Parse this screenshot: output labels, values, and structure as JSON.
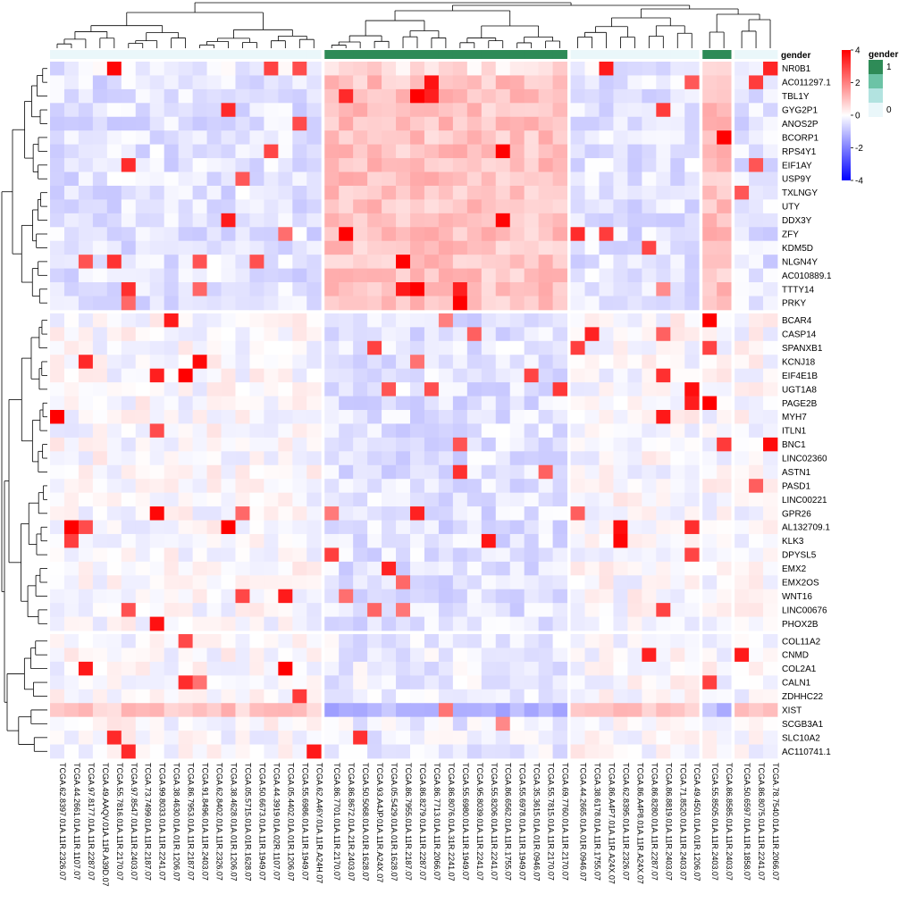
{
  "chart_data": {
    "type": "heatmap",
    "annotation_title": "gender",
    "legend_title": "gender",
    "color_scale": {
      "min": -4,
      "max": 4,
      "ticks": [
        "4",
        "2",
        "0",
        "-2",
        "-4"
      ],
      "low_color": "#0000ff",
      "mid_color": "#ffffff",
      "high_color": "#ff0000"
    },
    "annotation_legend": {
      "entries": [
        {
          "label": "1",
          "color": "#2e8b57"
        },
        {
          "label": "",
          "color": "#6cc3a6"
        },
        {
          "label": "",
          "color": "#b2e3e0"
        },
        {
          "label": "0",
          "color": "#eaf7fa"
        }
      ]
    },
    "gender_colors": {
      "1": "#2e8b57",
      "0": "#eaf7fa"
    },
    "gender": [
      0,
      0,
      0,
      0,
      0,
      0,
      0,
      0,
      0,
      0,
      0,
      0,
      0,
      0,
      0,
      0,
      0,
      0,
      0,
      1,
      1,
      1,
      1,
      1,
      1,
      1,
      1,
      1,
      1,
      1,
      1,
      1,
      1,
      1,
      1,
      1,
      0,
      0,
      0,
      0,
      0,
      0,
      0,
      0,
      0,
      1,
      1,
      0,
      0,
      0
    ],
    "rows": [
      "NR0B1",
      "AC011297.1",
      "TBL1Y",
      "GYG2P1",
      "ANOS2P",
      "BCORP1",
      "RPS4Y1",
      "EIF1AY",
      "USP9Y",
      "TXLNGY",
      "UTY",
      "DDX3Y",
      "ZFY",
      "KDM5D",
      "NLGN4Y",
      "AC010889.1",
      "TTTY14",
      "PRKY",
      "BCAR4",
      "CASP14",
      "SPANXB1",
      "KCNJ18",
      "EIF4E1B",
      "UGT1A8",
      "PAGE2B",
      "MYH7",
      "ITLN1",
      "BNC1",
      "LINC02360",
      "ASTN1",
      "PASD1",
      "LINC00221",
      "GPR26",
      "AL132709.1",
      "KLK3",
      "DPYSL5",
      "EMX2",
      "EMX2OS",
      "WNT16",
      "LINC00676",
      "PHOX2B",
      "COL11A2",
      "CNMD",
      "COL2A1",
      "CALN1",
      "ZDHHC22",
      "XIST",
      "SCGB3A1",
      "SLC10A2",
      "AC110741.1"
    ],
    "columns": [
      "TCGA.62.8397.01A.11R.2326.07",
      "TCGA.44.2661.01A.11R.1107.07",
      "TCGA.97.8177.01A.11R.2287.07",
      "TCGA.49.AAQV.01A.11R.A39D.07",
      "TCGA.55.7816.01A.11R.2170.07",
      "TCGA.97.8547.01A.11R.2403.07",
      "TCGA.73.7499.01A.11R.2187.07",
      "TCGA.99.8033.01A.11R.2241.07",
      "TCGA.38.4630.01A.01R.1206.07",
      "TCGA.86.7953.01A.11R.2187.07",
      "TCGA.91.8496.01A.11R.2403.07",
      "TCGA.62.8402.01A.11R.2326.07",
      "TCGA.38.4628.01A.01R.1206.07",
      "TCGA.05.5715.01A.01R.1628.07",
      "TCGA.50.6673.01A.11R.1949.07",
      "TCGA.44.3919.01A.02R.1107.07",
      "TCGA.05.4402.01A.01R.1206.07",
      "TCGA.55.6986.01A.11R.1949.07",
      "TCGA.62.A46Y.01A.11R.A24H.07",
      "TCGA.86.7701.01A.11R.2170.07",
      "TCGA.86.8672.01A.21R.2403.07",
      "TCGA.50.5068.01A.01R.1628.07",
      "TCGA.93.A4JP.01A.11R.A24X.07",
      "TCGA.05.5429.01A.01R.1628.07",
      "TCGA.86.7955.01A.11R.2187.07",
      "TCGA.86.8279.01A.11R.2287.07",
      "TCGA.86.7713.01A.11R.2066.07",
      "TCGA.86.8076.01A.31R.2241.07",
      "TCGA.55.6980.01A.11R.1949.07",
      "TCGA.95.8039.01A.11R.2241.07",
      "TCGA.55.8206.01A.11R.2241.07",
      "TCGA.86.6562.01A.11R.1755.07",
      "TCGA.55.6978.01A.11R.1949.07",
      "TCGA.35.3615.01A.01R.0946.07",
      "TCGA.55.7815.01A.11R.2170.07",
      "TCGA.69.7760.01A.11R.2170.07",
      "TCGA.44.2665.01A.01R.0946.07",
      "TCGA.38.6178.01A.11R.1755.07",
      "TCGA.86.A4P7.01A.11R.A24X.07",
      "TCGA.62.8395.01A.11R.2326.07",
      "TCGA.86.A4P8.01A.11R.A24X.07",
      "TCGA.86.8280.01A.11R.2287.07",
      "TCGA.86.8819.01A.11R.2403.07",
      "TCGA.71.8520.01A.11R.2403.07",
      "TCGA.49.4501.01A.01R.1206.07",
      "TCGA.55.8505.01A.11R.2403.07",
      "TCGA.86.8585.01A.11R.2403.07",
      "TCGA.50.6597.01A.11R.1858.07",
      "TCGA.86.8075.01A.11R.2241.07",
      "TCGA.78.7540.01A.11R.2066.07"
    ],
    "col_splits_after": [
      18,
      35,
      44,
      46
    ],
    "row_splits_after": [
      17,
      40
    ]
  }
}
